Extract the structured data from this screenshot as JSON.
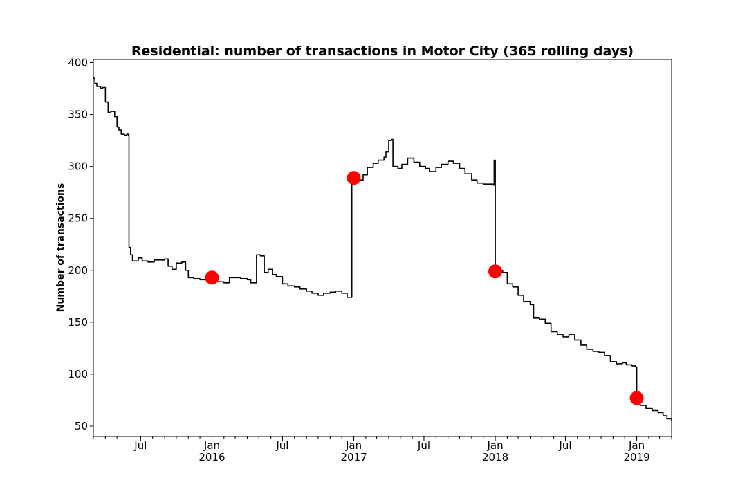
{
  "chart_data": {
    "type": "line",
    "title": "Residential: number of transactions in Motor City (365 rolling days)",
    "xlabel": "",
    "ylabel": "Number of transactions",
    "xlim": [
      "2015-03-01",
      "2019-04-01"
    ],
    "ylim": [
      40,
      403
    ],
    "y_ticks": [
      50,
      100,
      150,
      200,
      250,
      300,
      350,
      400
    ],
    "x_ticks": [
      {
        "date": "2015-07-01",
        "label": "Jul",
        "sub": ""
      },
      {
        "date": "2016-01-01",
        "label": "Jan",
        "sub": "2016"
      },
      {
        "date": "2016-07-01",
        "label": "Jul",
        "sub": ""
      },
      {
        "date": "2017-01-01",
        "label": "Jan",
        "sub": "2017"
      },
      {
        "date": "2017-07-01",
        "label": "Jul",
        "sub": ""
      },
      {
        "date": "2018-01-01",
        "label": "Jan",
        "sub": "2018"
      },
      {
        "date": "2018-07-01",
        "label": "Jul",
        "sub": ""
      },
      {
        "date": "2019-01-01",
        "label": "Jan",
        "sub": "2019"
      }
    ],
    "grid": false,
    "series": [
      {
        "name": "",
        "color": "#000000",
        "points": [
          [
            "2015-03-01",
            385
          ],
          [
            "2015-03-05",
            380
          ],
          [
            "2015-03-10",
            377
          ],
          [
            "2015-03-20",
            375
          ],
          [
            "2015-03-25",
            376
          ],
          [
            "2015-04-01",
            362
          ],
          [
            "2015-04-08",
            352
          ],
          [
            "2015-04-15",
            353
          ],
          [
            "2015-04-25",
            348
          ],
          [
            "2015-05-01",
            338
          ],
          [
            "2015-05-06",
            335
          ],
          [
            "2015-05-12",
            331
          ],
          [
            "2015-05-20",
            330
          ],
          [
            "2015-05-26",
            331
          ],
          [
            "2015-05-30",
            330
          ],
          [
            "2015-06-01",
            222
          ],
          [
            "2015-06-05",
            215
          ],
          [
            "2015-06-10",
            209
          ],
          [
            "2015-06-20",
            209
          ],
          [
            "2015-06-25",
            212
          ],
          [
            "2015-07-05",
            209
          ],
          [
            "2015-07-20",
            208
          ],
          [
            "2015-08-05",
            210
          ],
          [
            "2015-08-20",
            210
          ],
          [
            "2015-09-01",
            211
          ],
          [
            "2015-09-10",
            204
          ],
          [
            "2015-09-20",
            201
          ],
          [
            "2015-10-01",
            207
          ],
          [
            "2015-10-15",
            208
          ],
          [
            "2015-10-25",
            200
          ],
          [
            "2015-11-01",
            193
          ],
          [
            "2015-11-15",
            192
          ],
          [
            "2015-12-01",
            191
          ],
          [
            "2016-01-01",
            192
          ],
          [
            "2016-01-15",
            189
          ],
          [
            "2016-02-01",
            188
          ],
          [
            "2016-02-15",
            193
          ],
          [
            "2016-03-01",
            193
          ],
          [
            "2016-03-15",
            192
          ],
          [
            "2016-04-01",
            191
          ],
          [
            "2016-04-10",
            188
          ],
          [
            "2016-04-20",
            188
          ],
          [
            "2016-04-25",
            215
          ],
          [
            "2016-05-05",
            214
          ],
          [
            "2016-05-15",
            198
          ],
          [
            "2016-05-25",
            201
          ],
          [
            "2016-06-05",
            196
          ],
          [
            "2016-06-15",
            194
          ],
          [
            "2016-07-01",
            187
          ],
          [
            "2016-07-15",
            185
          ],
          [
            "2016-08-01",
            184
          ],
          [
            "2016-08-15",
            182
          ],
          [
            "2016-09-01",
            180
          ],
          [
            "2016-09-15",
            178
          ],
          [
            "2016-10-01",
            176
          ],
          [
            "2016-10-15",
            178
          ],
          [
            "2016-11-01",
            179
          ],
          [
            "2016-11-15",
            180
          ],
          [
            "2016-12-01",
            178
          ],
          [
            "2016-12-15",
            174
          ],
          [
            "2016-12-25",
            174
          ],
          [
            "2016-12-27",
            287
          ],
          [
            "2017-01-05",
            289
          ],
          [
            "2017-01-15",
            287
          ],
          [
            "2017-01-25",
            292
          ],
          [
            "2017-02-05",
            299
          ],
          [
            "2017-02-20",
            303
          ],
          [
            "2017-03-05",
            306
          ],
          [
            "2017-03-20",
            309
          ],
          [
            "2017-03-25",
            314
          ],
          [
            "2017-04-01",
            325
          ],
          [
            "2017-04-08",
            326
          ],
          [
            "2017-04-12",
            300
          ],
          [
            "2017-04-25",
            298
          ],
          [
            "2017-05-05",
            302
          ],
          [
            "2017-05-20",
            308
          ],
          [
            "2017-06-05",
            304
          ],
          [
            "2017-06-20",
            300
          ],
          [
            "2017-07-05",
            298
          ],
          [
            "2017-07-15",
            295
          ],
          [
            "2017-08-01",
            299
          ],
          [
            "2017-08-15",
            302
          ],
          [
            "2017-09-01",
            305
          ],
          [
            "2017-09-15",
            303
          ],
          [
            "2017-10-01",
            298
          ],
          [
            "2017-10-15",
            293
          ],
          [
            "2017-11-01",
            287
          ],
          [
            "2017-11-15",
            284
          ],
          [
            "2017-12-01",
            283
          ],
          [
            "2017-12-15",
            283
          ],
          [
            "2017-12-27",
            282
          ],
          [
            "2017-12-29",
            306
          ],
          [
            "2018-01-01",
            198
          ],
          [
            "2018-01-10",
            200
          ],
          [
            "2018-01-20",
            198
          ],
          [
            "2018-02-01",
            187
          ],
          [
            "2018-02-15",
            184
          ],
          [
            "2018-03-01",
            176
          ],
          [
            "2018-03-15",
            170
          ],
          [
            "2018-04-01",
            167
          ],
          [
            "2018-04-10",
            154
          ],
          [
            "2018-04-25",
            153
          ],
          [
            "2018-05-10",
            149
          ],
          [
            "2018-05-25",
            141
          ],
          [
            "2018-06-10",
            138
          ],
          [
            "2018-06-25",
            136
          ],
          [
            "2018-07-10",
            138
          ],
          [
            "2018-07-25",
            133
          ],
          [
            "2018-08-10",
            128
          ],
          [
            "2018-08-25",
            124
          ],
          [
            "2018-09-10",
            122
          ],
          [
            "2018-09-25",
            121
          ],
          [
            "2018-10-10",
            118
          ],
          [
            "2018-10-25",
            112
          ],
          [
            "2018-11-10",
            110
          ],
          [
            "2018-11-25",
            111
          ],
          [
            "2018-12-05",
            109
          ],
          [
            "2018-12-20",
            108
          ],
          [
            "2018-12-28",
            107
          ],
          [
            "2019-01-01",
            76
          ],
          [
            "2019-01-10",
            70
          ],
          [
            "2019-01-25",
            67
          ],
          [
            "2019-02-10",
            65
          ],
          [
            "2019-02-25",
            63
          ],
          [
            "2019-03-10",
            60
          ],
          [
            "2019-03-20",
            57
          ],
          [
            "2019-04-01",
            55
          ]
        ]
      }
    ],
    "markers": {
      "color": "#ff0000",
      "points": [
        [
          "2016-01-01",
          193
        ],
        [
          "2017-01-01",
          289
        ],
        [
          "2018-01-01",
          199
        ],
        [
          "2019-01-01",
          77
        ]
      ]
    }
  }
}
